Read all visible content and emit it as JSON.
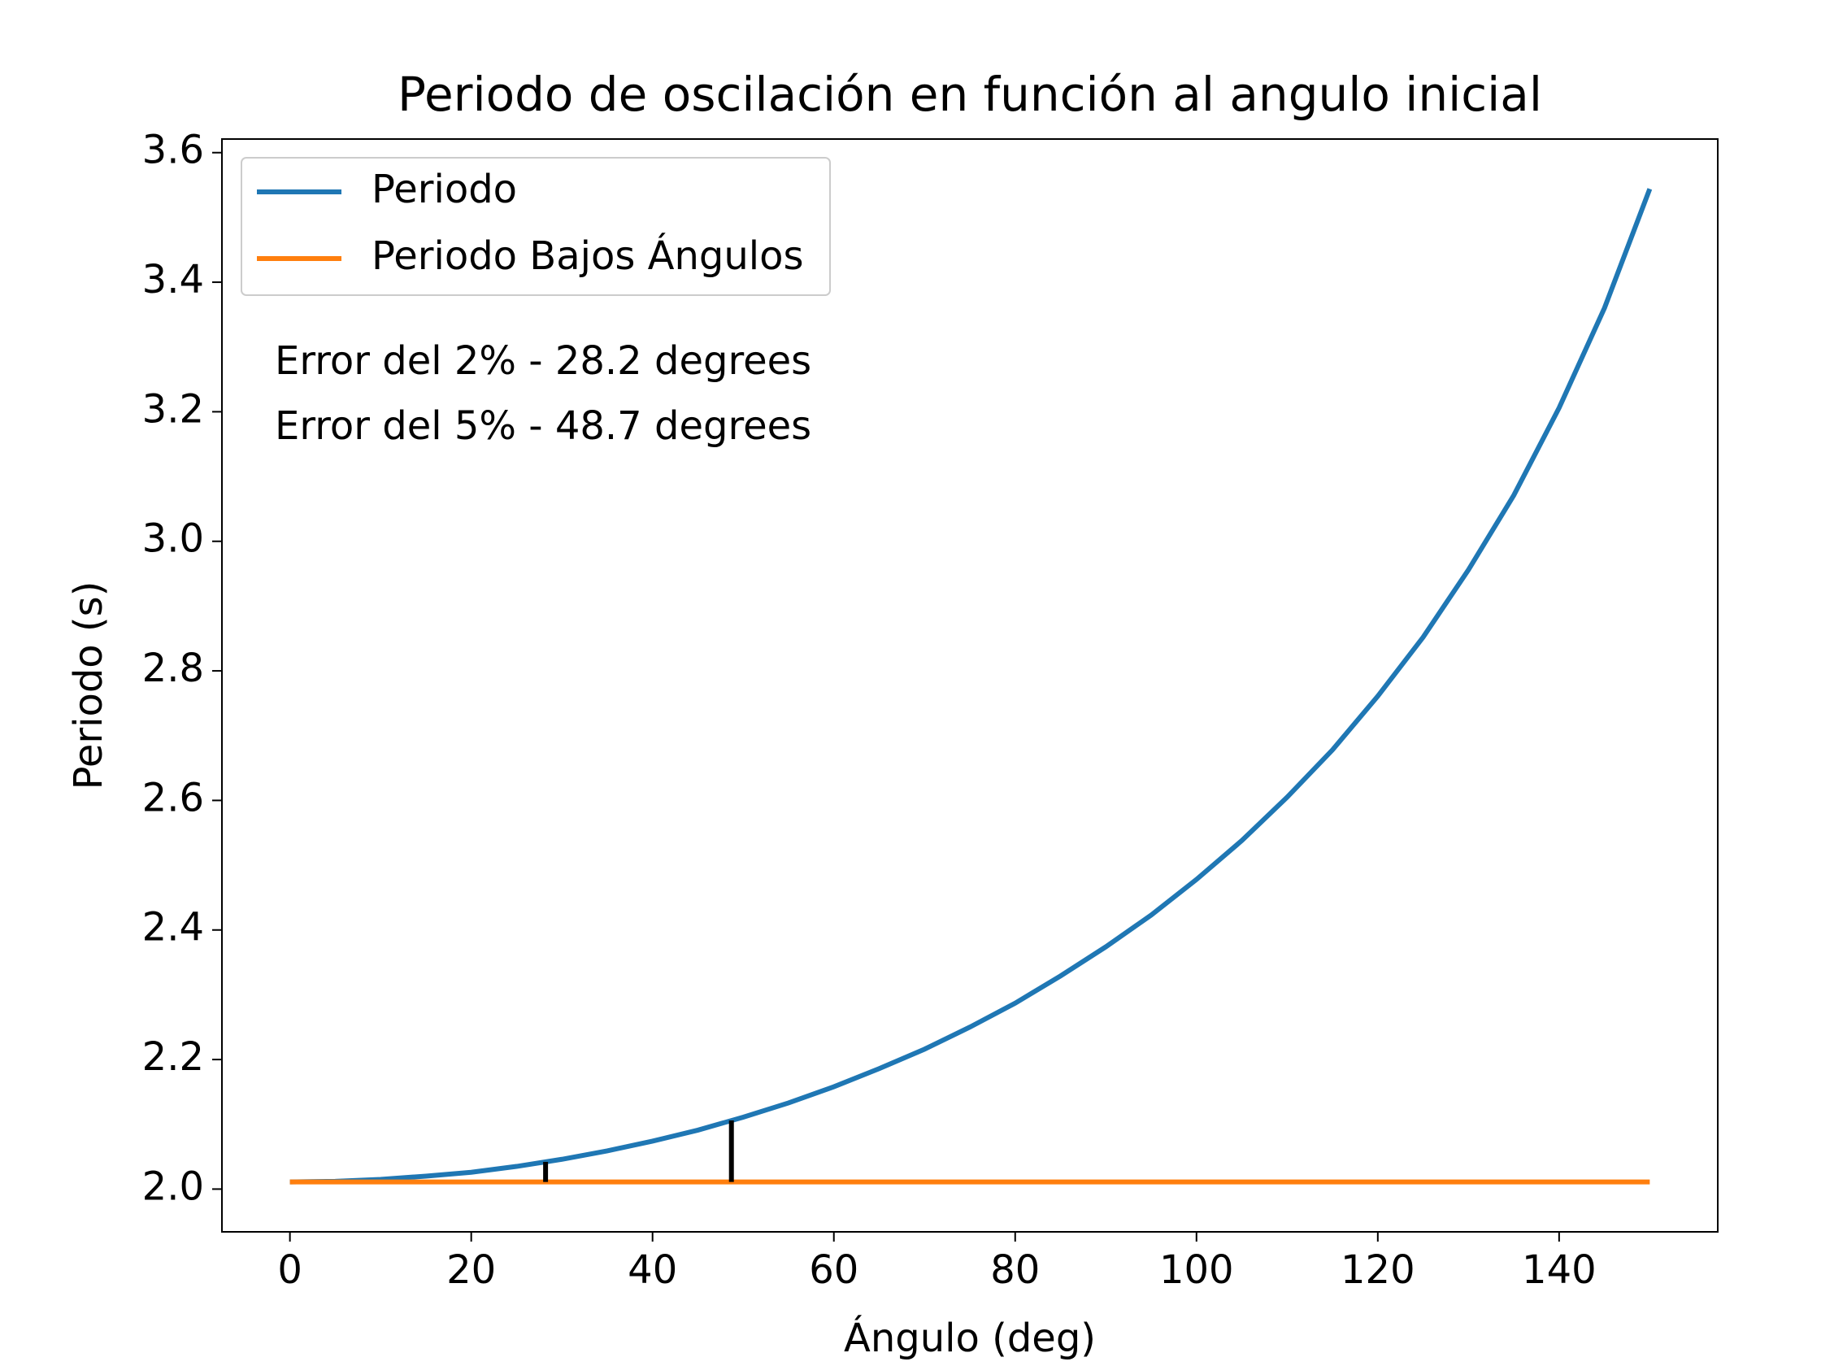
{
  "chart_data": {
    "type": "line",
    "title": "Periodo de oscilación en función al angulo inicial",
    "xlabel": "Ángulo (deg)",
    "ylabel": "Periodo (s)",
    "series": [
      {
        "name": "Periodo",
        "color": "#1f77b4",
        "x": [
          0,
          5,
          10,
          15,
          20,
          25,
          30,
          35,
          40,
          45,
          50,
          55,
          60,
          65,
          70,
          75,
          80,
          85,
          90,
          95,
          100,
          105,
          110,
          115,
          120,
          125,
          130,
          135,
          140,
          145,
          150
        ],
        "values": [
          2.011,
          2.012,
          2.015,
          2.02,
          2.026,
          2.035,
          2.046,
          2.059,
          2.074,
          2.091,
          2.111,
          2.133,
          2.158,
          2.186,
          2.216,
          2.25,
          2.287,
          2.329,
          2.374,
          2.423,
          2.478,
          2.538,
          2.605,
          2.678,
          2.761,
          2.852,
          2.956,
          3.071,
          3.206,
          3.36,
          3.544
        ]
      },
      {
        "name": "Periodo Bajos Ángulos",
        "color": "#ff7f0e",
        "x": [
          0,
          150
        ],
        "values": [
          2.011,
          2.011
        ]
      }
    ],
    "vlines": {
      "color": "#000000",
      "x": [
        28.2,
        48.7
      ],
      "ymin": [
        2.011,
        2.011
      ],
      "ymax": [
        2.042,
        2.106
      ]
    },
    "annotations": [
      "Error del 2% - 28.2 degrees",
      "Error del 5% - 48.7 degrees"
    ],
    "xlim": [
      -7.5,
      157.5
    ],
    "ylim": [
      1.934,
      3.621
    ],
    "xticks": [
      0,
      20,
      40,
      60,
      80,
      100,
      120,
      140
    ],
    "yticks": [
      {
        "value": 2,
        "label": "2.0"
      },
      2.2,
      2.4,
      2.6,
      2.8,
      {
        "value": 3,
        "label": "3.0"
      },
      3.2,
      3.4,
      3.6
    ],
    "legend": "upper left",
    "grid": false
  }
}
